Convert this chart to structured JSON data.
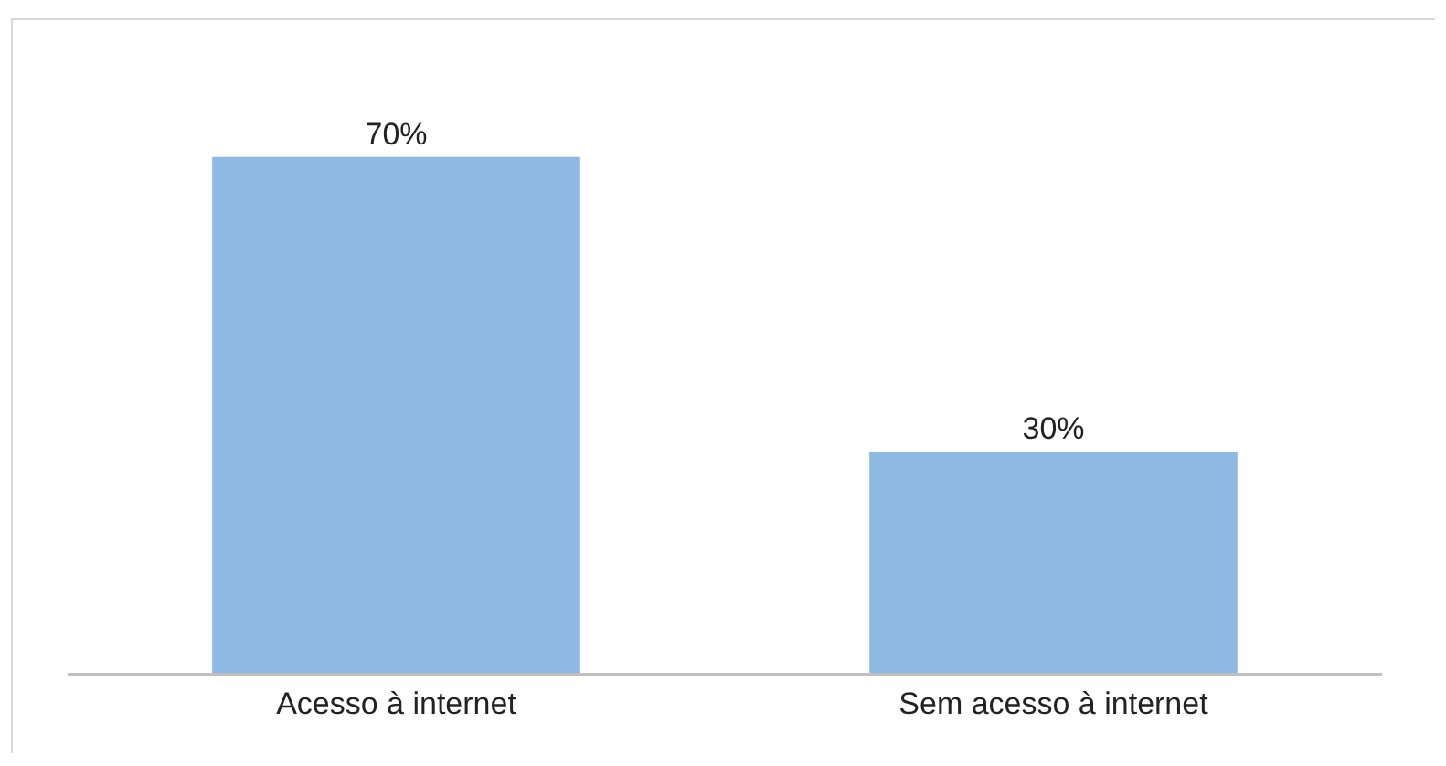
{
  "chart_data": {
    "type": "bar",
    "categories": [
      "Acesso à internet",
      "Sem acesso à internet"
    ],
    "values": [
      70,
      30
    ],
    "value_labels": [
      "70%",
      "30%"
    ],
    "color": "#8db9e2",
    "grid": false,
    "tick_labels": "x"
  }
}
